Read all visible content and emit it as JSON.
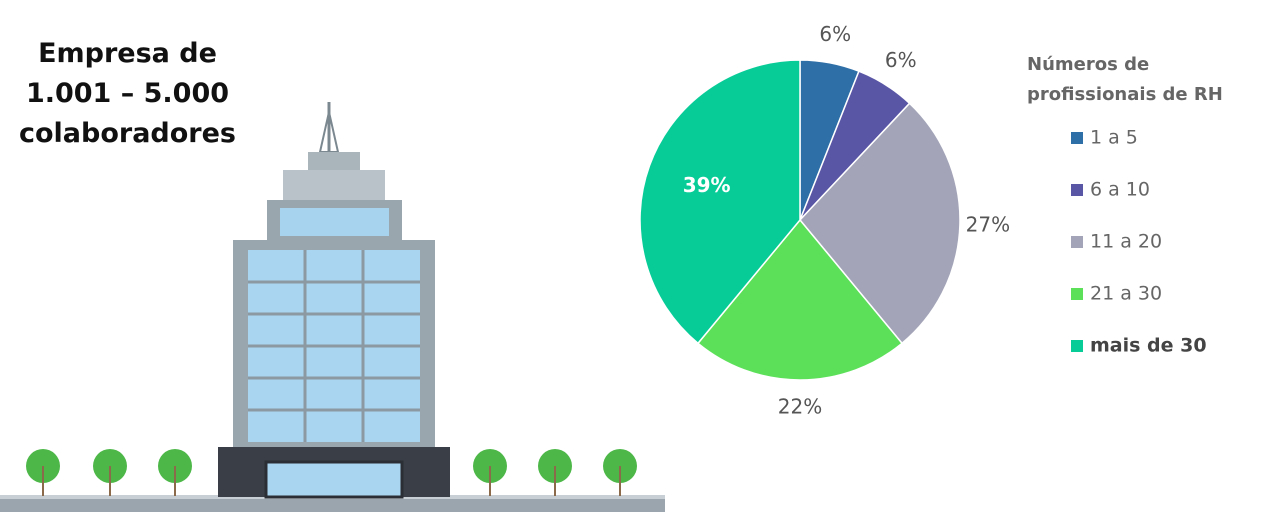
{
  "chart_data": {
    "type": "pie",
    "title": "Empresa de 1.001 – 5.000 colaboradores",
    "legend_title": "Números de profissionais de RH",
    "categories": [
      "1 a 5",
      "6 a 10",
      "11 a 20",
      "21 a 30",
      "mais de 30"
    ],
    "values": [
      6,
      6,
      27,
      22,
      39
    ],
    "value_labels": [
      "6%",
      "6%",
      "27%",
      "22%",
      "39%"
    ],
    "colors": [
      "#2f6fa7",
      "#5a56a6",
      "#a3a4b8",
      "#5ce05a",
      "#08cc98"
    ],
    "legend": "right"
  }
}
